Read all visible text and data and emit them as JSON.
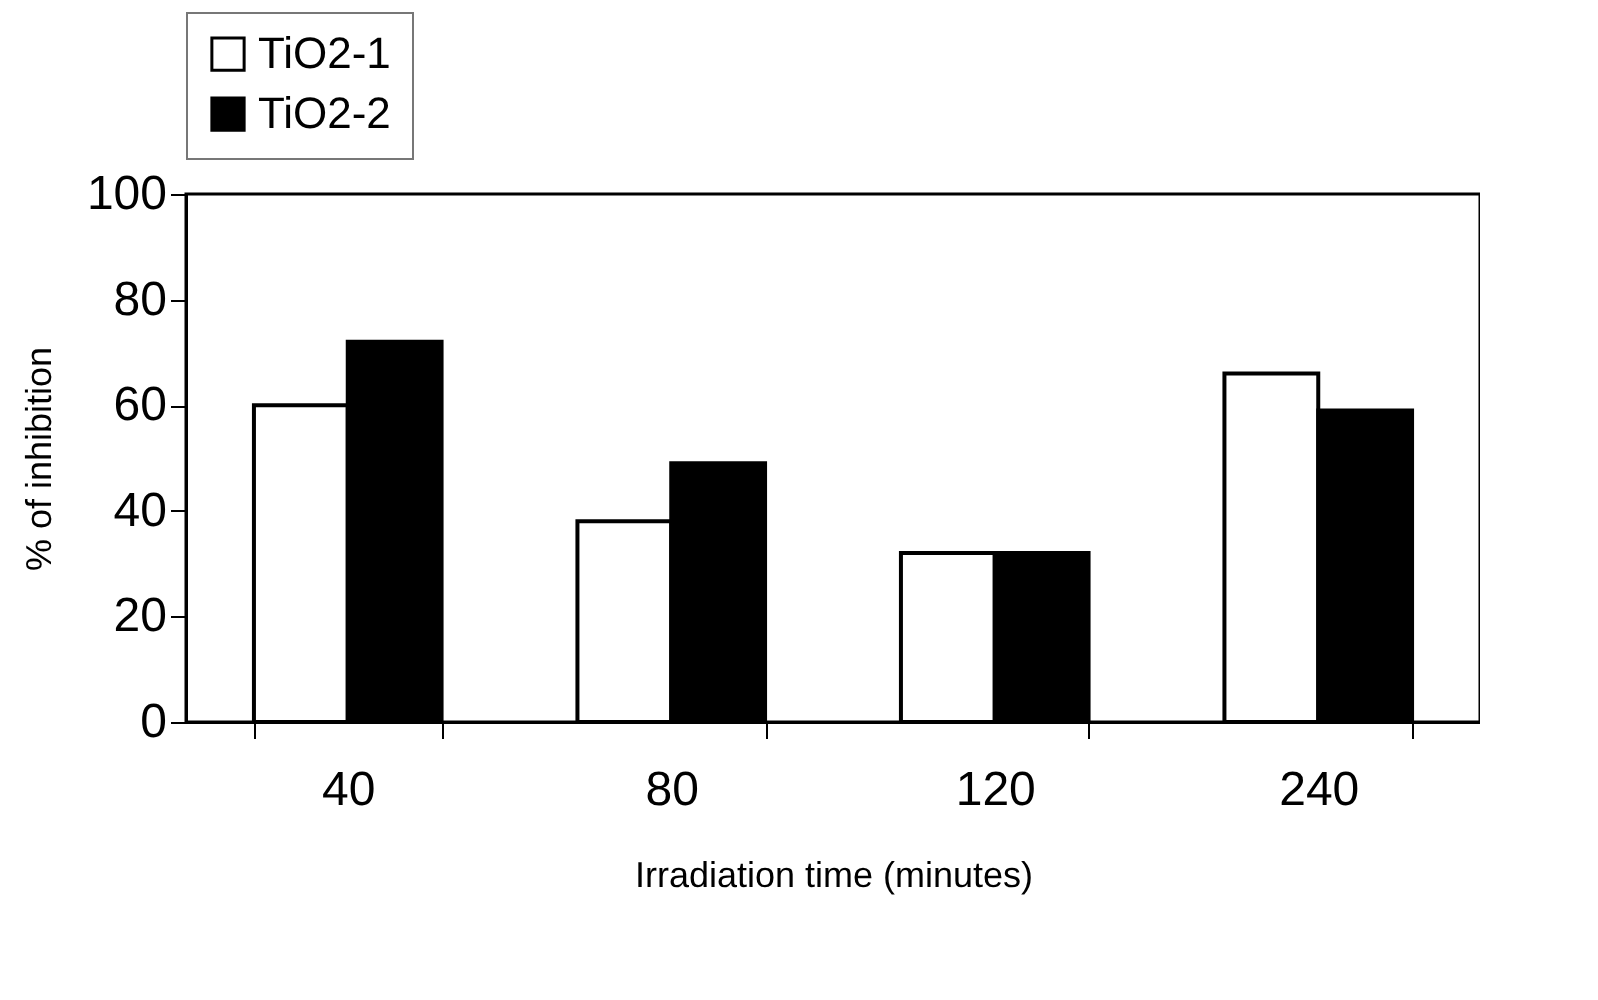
{
  "chart_data": {
    "type": "bar",
    "xlabel": "Irradiation time (minutes)",
    "ylabel": "% of inhibition",
    "categories": [
      "40",
      "80",
      "120",
      "240"
    ],
    "series": [
      {
        "name": "TiO2-1",
        "color": "#ffffff",
        "values": [
          60,
          38,
          32,
          66
        ]
      },
      {
        "name": "TiO2-2",
        "color": "#000000",
        "values": [
          72,
          49,
          32,
          59
        ]
      }
    ],
    "ylim": [
      0,
      100
    ],
    "yticks": [
      0,
      20,
      40,
      60,
      80,
      100
    ],
    "grid": false,
    "legend": "top"
  }
}
